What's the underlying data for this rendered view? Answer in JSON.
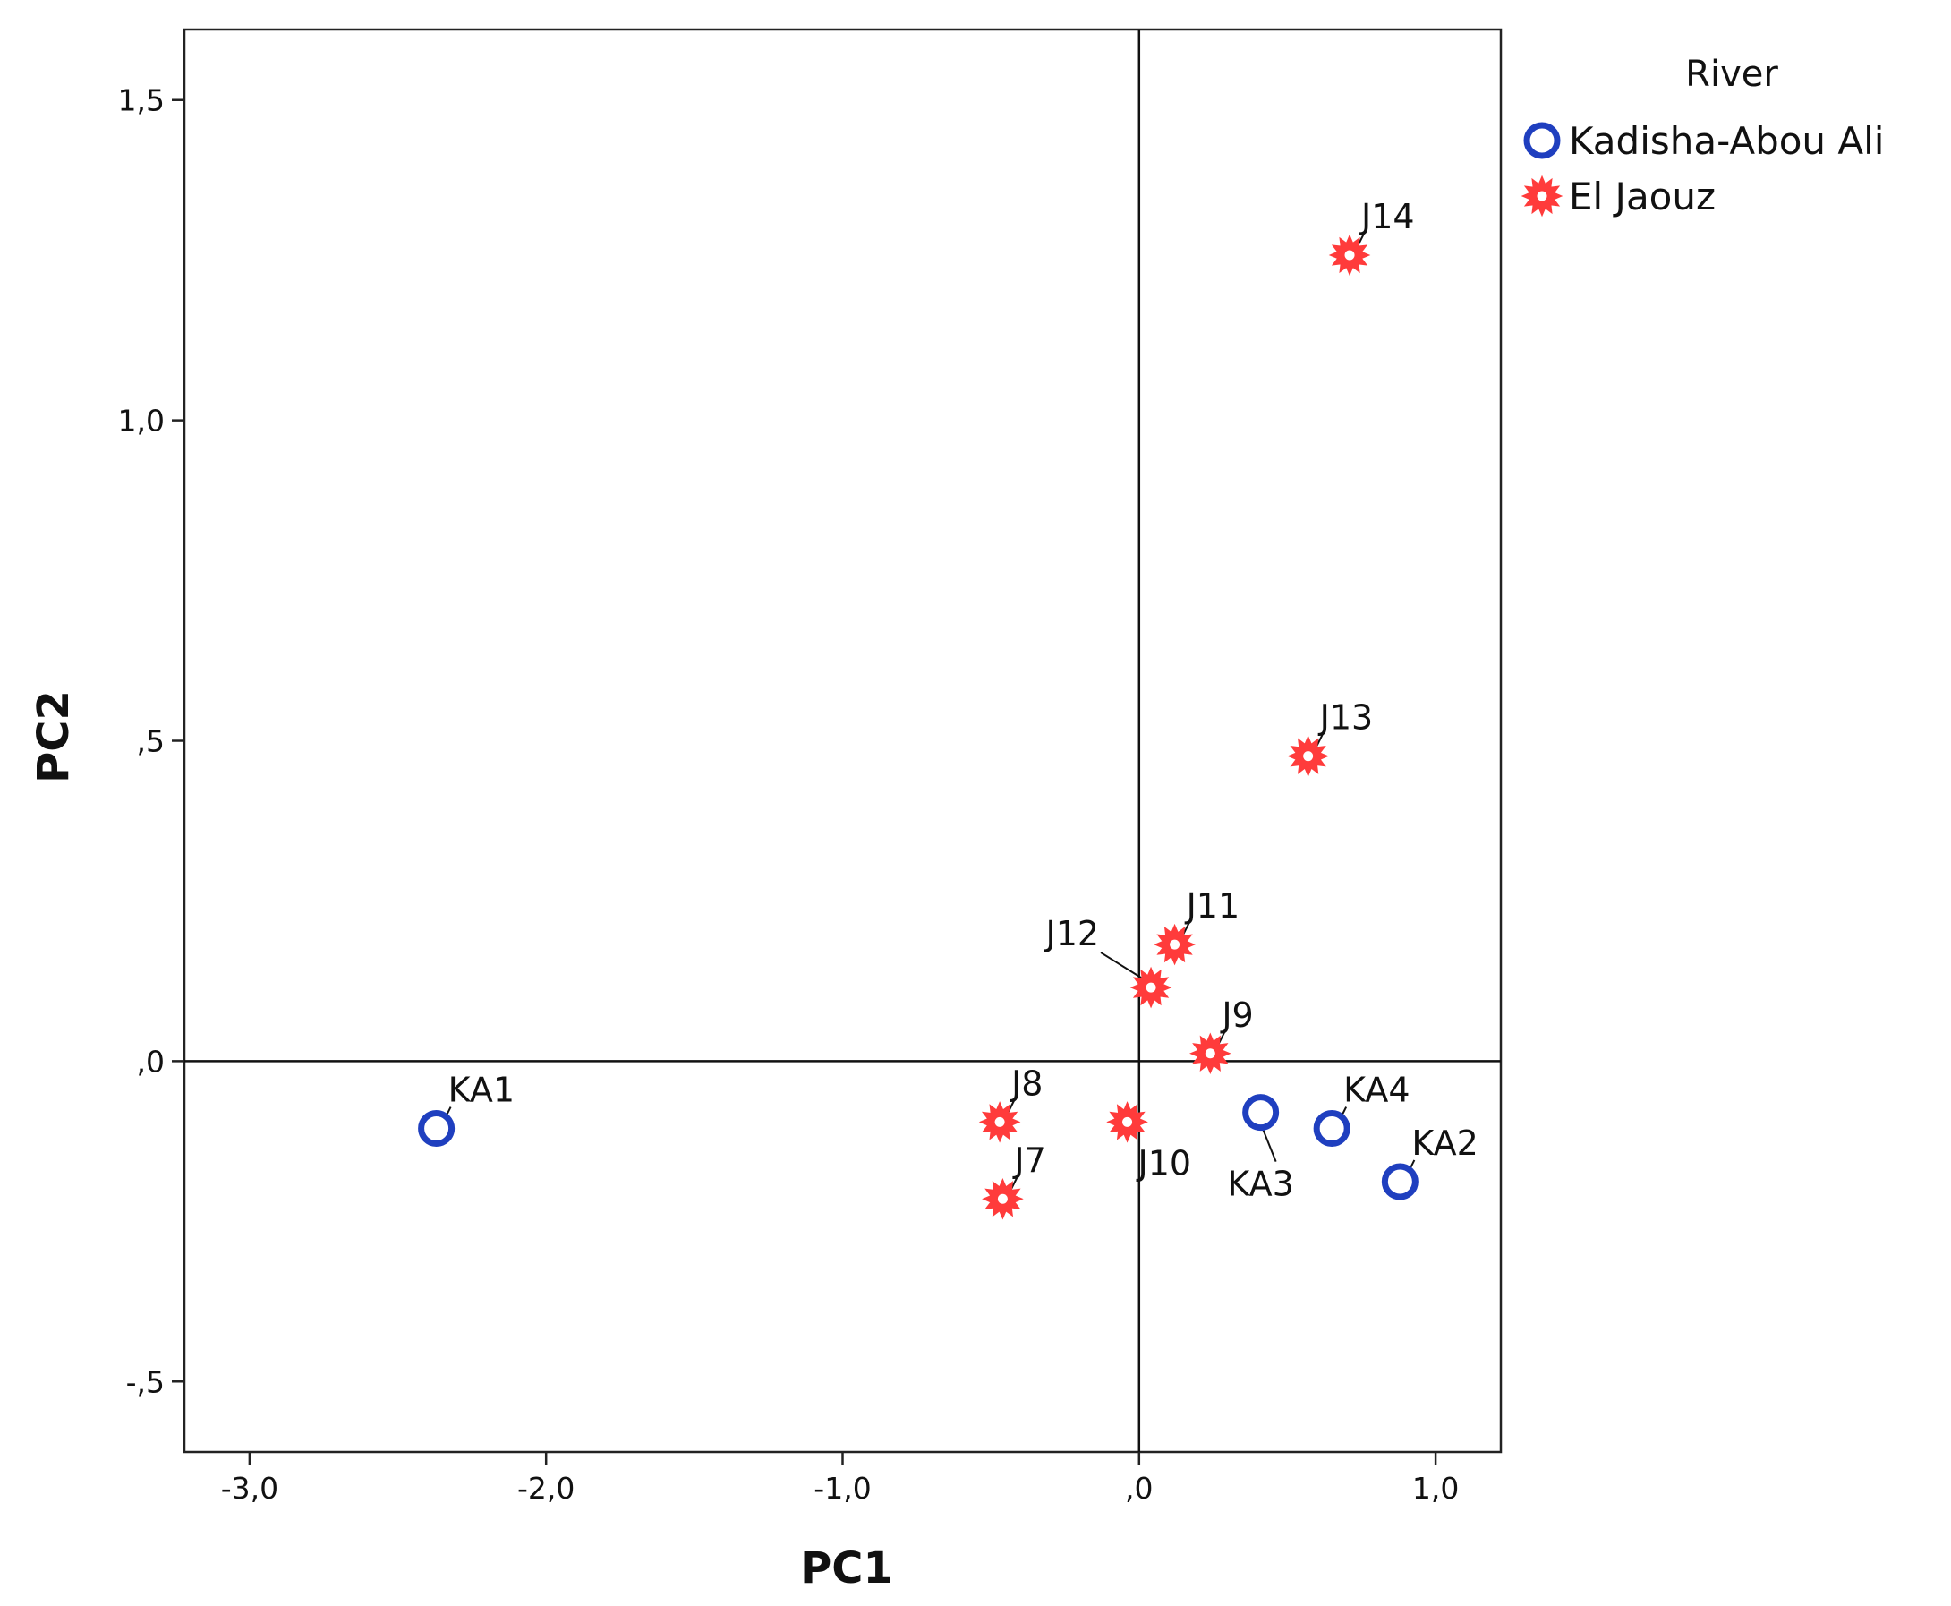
{
  "chart_data": {
    "type": "scatter",
    "title": "",
    "xlabel": "PC1",
    "ylabel": "PC2",
    "xlim": [
      -3.22,
      1.22
    ],
    "ylim": [
      -0.61,
      1.61
    ],
    "x_ticks": [
      {
        "value": -3.0,
        "label": "-3,0"
      },
      {
        "value": -2.0,
        "label": "-2,0"
      },
      {
        "value": -1.0,
        "label": "-1,0"
      },
      {
        "value": 0.0,
        "label": ",0"
      },
      {
        "value": 1.0,
        "label": "1,0"
      }
    ],
    "y_ticks": [
      {
        "value": -0.5,
        "label": "-,5"
      },
      {
        "value": 0.0,
        "label": ",0"
      },
      {
        "value": 0.5,
        "label": ",5"
      },
      {
        "value": 1.0,
        "label": "1,0"
      },
      {
        "value": 1.5,
        "label": "1,5"
      }
    ],
    "reference_lines": {
      "x": 0,
      "y": 0
    },
    "grid": false,
    "legend": {
      "title": "River",
      "placement": "top-right-outside"
    },
    "series": [
      {
        "name": "Kadisha-Abou Ali",
        "marker": "circle",
        "color": "#1f3fbf",
        "points": [
          {
            "label": "KA1",
            "x": -2.37,
            "y": -0.105,
            "label_pos": "above-right"
          },
          {
            "label": "KA2",
            "x": 0.88,
            "y": -0.188,
            "label_pos": "above-right"
          },
          {
            "label": "KA3",
            "x": 0.41,
            "y": -0.08,
            "label_pos": "below-leader"
          },
          {
            "label": "KA4",
            "x": 0.65,
            "y": -0.105,
            "label_pos": "above-right"
          }
        ]
      },
      {
        "name": "El Jaouz",
        "marker": "star",
        "color": "#ff3b3b",
        "points": [
          {
            "label": "J7",
            "x": -0.46,
            "y": -0.215,
            "label_pos": "above-right"
          },
          {
            "label": "J8",
            "x": -0.47,
            "y": -0.095,
            "label_pos": "above-right"
          },
          {
            "label": "J9",
            "x": 0.24,
            "y": 0.012,
            "label_pos": "above-right"
          },
          {
            "label": "J10",
            "x": -0.04,
            "y": -0.095,
            "label_pos": "below-right"
          },
          {
            "label": "J11",
            "x": 0.12,
            "y": 0.182,
            "label_pos": "above-right"
          },
          {
            "label": "J12",
            "x": 0.04,
            "y": 0.115,
            "label_pos": "above-left-leader"
          },
          {
            "label": "J13",
            "x": 0.57,
            "y": 0.476,
            "label_pos": "above-right"
          },
          {
            "label": "J14",
            "x": 0.71,
            "y": 1.258,
            "label_pos": "above-right"
          }
        ]
      }
    ]
  }
}
